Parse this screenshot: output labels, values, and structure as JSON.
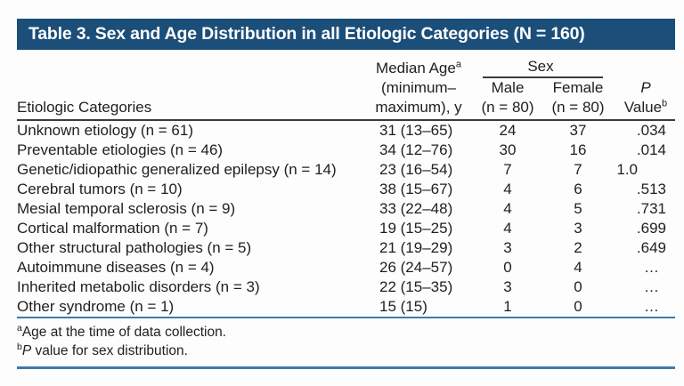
{
  "title": "Table 3. Sex and Age Distribution in all Etiologic Categories (N = 160)",
  "header": {
    "col_categories": "Etiologic Categories",
    "age": {
      "line1": "Median Age",
      "sup": "a",
      "line2": "(minimum–",
      "line3": "maximum), y"
    },
    "sex_group": {
      "label": "Sex",
      "male": {
        "line1": "Male",
        "line2": "(n = 80)"
      },
      "female": {
        "line1": "Female",
        "line2": "(n = 80)"
      }
    },
    "p": {
      "line1": "P",
      "line2": "Value",
      "sup": "b"
    }
  },
  "rows": [
    {
      "label": "Unknown etiology (n = 61)",
      "age": "31 (13–65)",
      "male": "24",
      "female": "37",
      "p": ".034"
    },
    {
      "label": "Preventable etiologies (n = 46)",
      "age": "34 (12–76)",
      "male": "30",
      "female": "16",
      "p": ".014"
    },
    {
      "label": "Genetic/idiopathic generalized epilepsy (n = 14)",
      "age": "23 (16–54)",
      "male": "7",
      "female": "7",
      "p": "1.0"
    },
    {
      "label": "Cerebral tumors (n = 10)",
      "age": "38 (15–67)",
      "male": "4",
      "female": "6",
      "p": ".513"
    },
    {
      "label": "Mesial temporal sclerosis (n = 9)",
      "age": "33 (22–48)",
      "male": "4",
      "female": "5",
      "p": ".731"
    },
    {
      "label": "Cortical malformation (n = 7)",
      "age": "19 (15–25)",
      "male": "4",
      "female": "3",
      "p": ".699"
    },
    {
      "label": "Other structural pathologies (n = 5)",
      "age": "21 (19–29)",
      "male": "3",
      "female": "2",
      "p": ".649"
    },
    {
      "label": "Autoimmune diseases (n = 4)",
      "age": "26 (24–57)",
      "male": "0",
      "female": "4",
      "p": "…"
    },
    {
      "label": "Inherited metabolic disorders (n = 3)",
      "age": "22 (15–35)",
      "male": "3",
      "female": "0",
      "p": "…"
    },
    {
      "label": "Other syndrome (n = 1)",
      "age": "15 (15)",
      "male": "1",
      "female": "0",
      "p": "…"
    }
  ],
  "footnotes": [
    {
      "marker": "a",
      "italic_lead": "",
      "text": "Age at the time of data collection."
    },
    {
      "marker": "b",
      "italic_lead": "P",
      "text": " value for sex distribution."
    }
  ],
  "colors": {
    "title_bar": "#1b4e79",
    "title_text": "#ffffff",
    "header_rule": "#3b3b3a",
    "blue_rule": "#3d7ba9",
    "body_text": "#1f1f1f"
  }
}
